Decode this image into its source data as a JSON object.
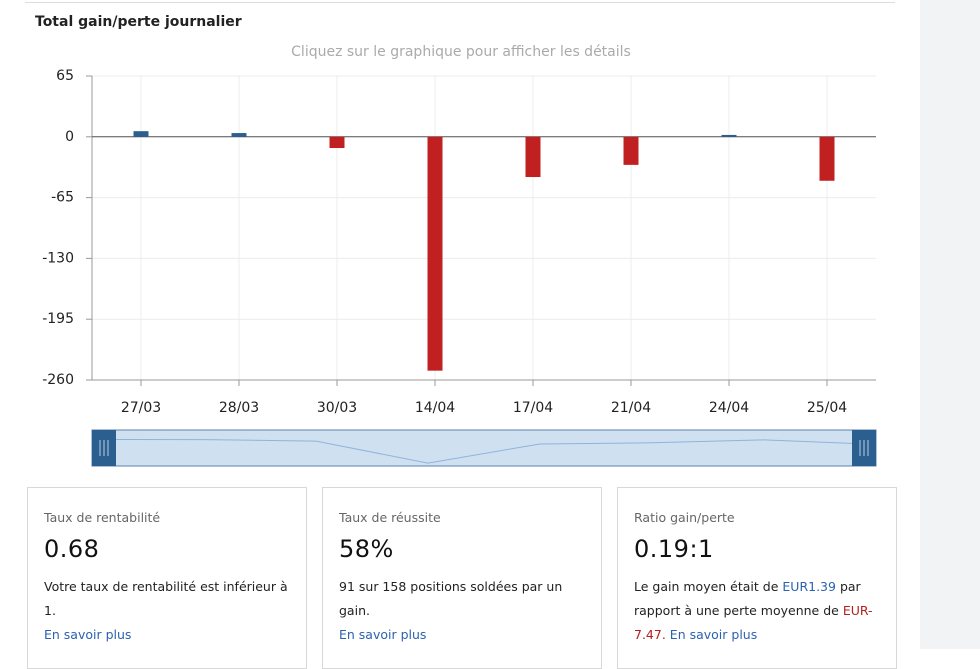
{
  "chart_data": {
    "type": "bar",
    "title": "Total gain/perte journalier",
    "subtitle": "Cliquez sur le graphique pour afficher les détails",
    "categories": [
      "27/03",
      "28/03",
      "30/03",
      "14/04",
      "17/04",
      "21/04",
      "24/04",
      "25/04"
    ],
    "values": [
      6,
      4,
      -12,
      -250,
      -43,
      -30,
      2,
      -47
    ],
    "positive_color": "#2a5f8f",
    "negative_color": "#c0201f",
    "ylim": [
      -260,
      65
    ],
    "yticks": [
      65,
      0,
      -65,
      -130,
      -195,
      -260
    ],
    "grid": true
  },
  "cards": [
    {
      "label": "Taux de rentabilité",
      "value": "0.68",
      "text": [
        "Votre taux de rentabilité est inférieur à 1."
      ],
      "link": "En savoir plus"
    },
    {
      "label": "Taux de réussite",
      "value": "58%",
      "text": [
        "91 sur 158 positions soldées par un gain."
      ],
      "link": "En savoir plus"
    },
    {
      "label": "Ratio gain/perte",
      "value": "0.19:1",
      "text": [
        "Le gain moyen était de ",
        "EUR1.39",
        " par rapport à une perte moyenne de ",
        "EUR-7.47",
        ". "
      ],
      "link": "En savoir plus"
    }
  ]
}
